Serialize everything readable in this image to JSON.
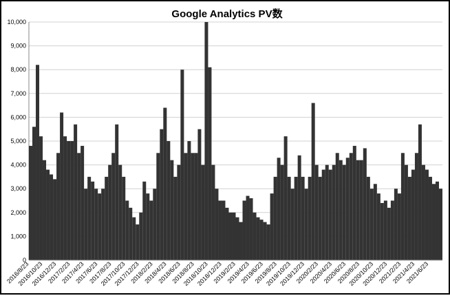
{
  "chart_data": {
    "type": "bar",
    "title": "Google Analytics PV数",
    "categories": [
      "2016/8/23",
      null,
      null,
      null,
      "2016/10/23",
      null,
      null,
      null,
      "2016/12/23",
      null,
      null,
      null,
      "2017/2/23",
      null,
      null,
      null,
      "2017/4/23",
      null,
      null,
      null,
      "2017/6/23",
      null,
      null,
      null,
      "2017/8/23",
      null,
      null,
      null,
      "2017/10/23",
      null,
      null,
      null,
      "2017/12/23",
      null,
      null,
      null,
      "2018/2/23",
      null,
      null,
      null,
      "2018/4/23",
      null,
      null,
      null,
      "2018/6/23",
      null,
      null,
      null,
      "2018/8/23",
      null,
      null,
      null,
      "2018/10/23",
      null,
      null,
      null,
      "2018/12/23",
      null,
      null,
      null,
      "2019/2/23",
      null,
      null,
      null,
      "2019/4/23",
      null,
      null,
      null,
      "2019/6/23",
      null,
      null,
      null,
      "2019/8/23",
      null,
      null,
      null,
      "2019/10/23",
      null,
      null,
      null,
      "2019/12/23",
      null,
      null,
      null,
      "2020/2/23",
      null,
      null,
      null,
      "2020/4/23",
      null,
      null,
      null,
      "2020/6/23",
      null,
      null,
      null,
      "2020/8/23",
      null,
      null,
      null,
      "2020/10/23",
      null,
      null,
      null,
      "2020/12/23",
      null,
      null,
      null,
      "2021/2/23",
      null,
      null,
      null,
      "2021/4/23",
      null,
      null,
      null,
      "2021/6/23",
      null,
      null,
      null
    ],
    "values": [
      4800,
      5600,
      8200,
      5200,
      4200,
      3800,
      3600,
      3400,
      4500,
      6200,
      5200,
      5000,
      5000,
      5700,
      4500,
      4800,
      3000,
      3500,
      3300,
      3000,
      2800,
      3000,
      3500,
      4000,
      4500,
      5700,
      4000,
      3500,
      2500,
      2200,
      1800,
      1500,
      2000,
      3300,
      2800,
      2500,
      3000,
      4500,
      5500,
      6400,
      5000,
      4200,
      3500,
      4000,
      8000,
      4500,
      5000,
      4500,
      4500,
      5500,
      4000,
      10000,
      8100,
      4000,
      3000,
      2500,
      2500,
      2200,
      2000,
      2000,
      1800,
      1600,
      2500,
      2700,
      2600,
      2000,
      1800,
      1700,
      1600,
      1500,
      2800,
      3500,
      4300,
      4000,
      5200,
      3500,
      3000,
      3500,
      4400,
      3500,
      3000,
      3500,
      6600,
      4000,
      3500,
      3800,
      4000,
      3800,
      4000,
      4500,
      4200,
      4000,
      4300,
      4500,
      4800,
      4200,
      4200,
      4700,
      3500,
      3000,
      3200,
      2800,
      2400,
      2500,
      2200,
      2500,
      3000,
      2800,
      4500,
      4000,
      3500,
      3800,
      4500,
      5700,
      4000,
      3800,
      3500,
      3200,
      3300,
      3000
    ],
    "color": "#333333",
    "ylim": [
      0,
      10000
    ],
    "yticks": [
      0,
      {
        "value": 1000,
        "label": "1,000"
      },
      {
        "value": 2000,
        "label": "2,000"
      },
      {
        "value": 3000,
        "label": "3,000"
      },
      {
        "value": 4000,
        "label": "4,000"
      },
      {
        "value": 5000,
        "label": "5,000"
      },
      {
        "value": 6000,
        "label": "6,000"
      },
      {
        "value": 7000,
        "label": "7,000"
      },
      {
        "value": 8000,
        "label": "8,000"
      },
      {
        "value": 9000,
        "label": "9,000"
      },
      {
        "value": 10000,
        "label": "10,000"
      }
    ],
    "grid": true
  }
}
